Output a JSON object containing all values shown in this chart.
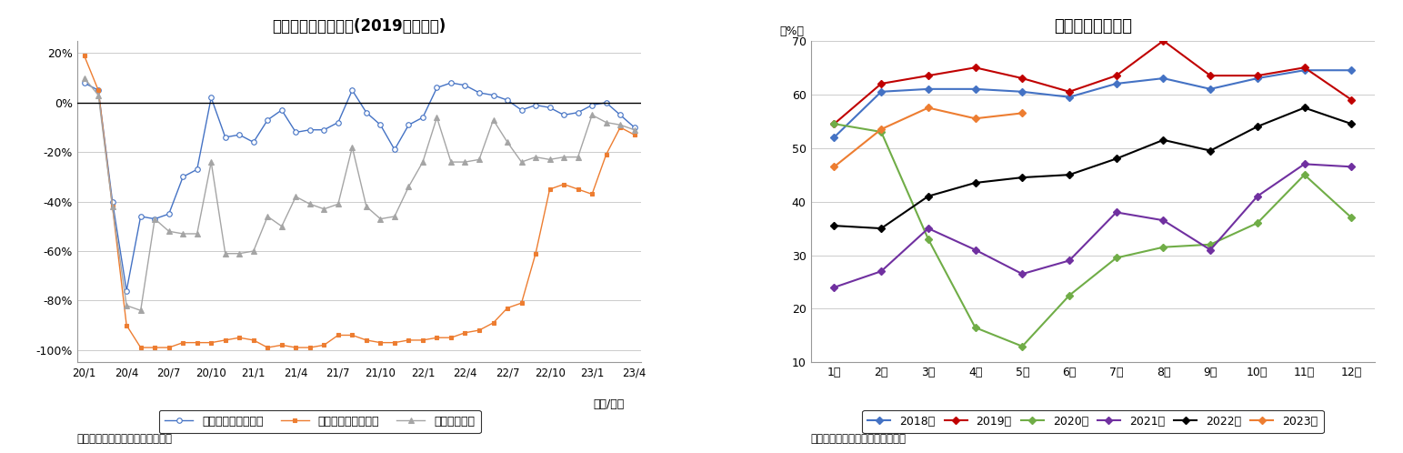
{
  "chart1": {
    "title": "延べ宿泊者数の推移(2019年同月比)",
    "xlabel": "（年/月）",
    "source": "（出典）観光庁「宿泊旅行統計」",
    "yticks": [
      -100,
      -80,
      -60,
      -40,
      -20,
      0,
      20
    ],
    "yticklabels": [
      "-100%",
      "-80%",
      "-60%",
      "-40%",
      "-20%",
      "0%",
      "20%"
    ],
    "xtick_labels": [
      "20/1",
      "20/4",
      "20/7",
      "20/10",
      "21/1",
      "21/4",
      "21/7",
      "21/10",
      "22/1",
      "22/4",
      "22/7",
      "22/10",
      "23/1",
      "23/4"
    ],
    "xtick_positions": [
      0,
      3,
      6,
      9,
      12,
      15,
      18,
      21,
      24,
      27,
      30,
      33,
      36,
      39
    ],
    "series": {
      "japanese": {
        "label": "日本人延べ宿泊者数",
        "color": "#4472C4",
        "marker": "o",
        "markersize": 4,
        "markerfacecolor": "white",
        "data": [
          8,
          5,
          -40,
          -76,
          -46,
          -47,
          -45,
          -30,
          -27,
          2,
          -14,
          -13,
          -16,
          -7,
          -3,
          -12,
          -11,
          -11,
          -8,
          5,
          -4,
          -9,
          -19,
          -9,
          -6,
          6,
          8,
          7,
          4,
          3,
          1,
          -3,
          -1,
          -2,
          -5,
          -4,
          -1,
          0,
          -5,
          -10
        ]
      },
      "foreign": {
        "label": "外国人延べ宿泊者数",
        "color": "#ED7D31",
        "marker": "s",
        "markersize": 3,
        "markerfacecolor": "#ED7D31",
        "data": [
          19,
          5,
          -42,
          -90,
          -99,
          -99,
          -99,
          -97,
          -97,
          -97,
          -96,
          -95,
          -96,
          -99,
          -98,
          -99,
          -99,
          -98,
          -94,
          -94,
          -96,
          -97,
          -97,
          -96,
          -96,
          -95,
          -95,
          -93,
          -92,
          -89,
          -83,
          -81,
          -61,
          -35,
          -33,
          -35,
          -37,
          -21,
          -10,
          -13
        ]
      },
      "total": {
        "label": "延べ宿泊者数",
        "color": "#A5A5A5",
        "marker": "^",
        "markersize": 4,
        "markerfacecolor": "#A5A5A5",
        "data": [
          10,
          3,
          -42,
          -82,
          -84,
          -47,
          -52,
          -53,
          -53,
          -24,
          -61,
          -61,
          -60,
          -46,
          -50,
          -38,
          -41,
          -43,
          -41,
          -18,
          -42,
          -47,
          -46,
          -34,
          -24,
          -6,
          -24,
          -24,
          -23,
          -7,
          -16,
          -24,
          -22,
          -23,
          -22,
          -22,
          -5,
          -8,
          -9,
          -11
        ]
      }
    }
  },
  "chart2": {
    "title": "客室稼働率の推移",
    "ylabel": "（%）",
    "source": "（資料）観光庁「宿泊旅行統計」",
    "ylim": [
      10,
      70
    ],
    "yticks": [
      10,
      20,
      30,
      40,
      50,
      60,
      70
    ],
    "xtick_labels": [
      "1月",
      "2月",
      "3月",
      "4月",
      "5月",
      "6月",
      "7月",
      "8月",
      "9月",
      "10月",
      "11月",
      "12月"
    ],
    "series": {
      "2018": {
        "label": "2018年",
        "color": "#4472C4",
        "marker": "D",
        "markersize": 4,
        "data": [
          52,
          60.5,
          61,
          61,
          60.5,
          59.5,
          62,
          63,
          61,
          63,
          64.5,
          64.5
        ]
      },
      "2019": {
        "label": "2019年",
        "color": "#C00000",
        "marker": "D",
        "markersize": 4,
        "data": [
          54.5,
          62,
          63.5,
          65,
          63,
          60.5,
          63.5,
          70,
          63.5,
          63.5,
          65,
          59
        ]
      },
      "2020": {
        "label": "2020年",
        "color": "#70AD47",
        "marker": "D",
        "markersize": 4,
        "data": [
          54.5,
          53,
          33,
          16.5,
          13,
          22.5,
          29.5,
          31.5,
          32,
          36,
          45,
          37
        ]
      },
      "2021": {
        "label": "2021年",
        "color": "#7030A0",
        "marker": "D",
        "markersize": 4,
        "data": [
          24,
          27,
          35,
          31,
          26.5,
          29,
          38,
          36.5,
          31,
          41,
          47,
          46.5
        ]
      },
      "2022": {
        "label": "2022年",
        "color": "#000000",
        "marker": "D",
        "markersize": 4,
        "data": [
          35.5,
          35,
          41,
          43.5,
          44.5,
          45,
          48,
          51.5,
          49.5,
          54,
          57.5,
          54.5
        ]
      },
      "2023": {
        "label": "2023年",
        "color": "#ED7D31",
        "marker": "D",
        "markersize": 4,
        "data": [
          46.5,
          53.5,
          57.5,
          55.5,
          56.5,
          null,
          null,
          null,
          null,
          null,
          null,
          null
        ]
      }
    }
  }
}
